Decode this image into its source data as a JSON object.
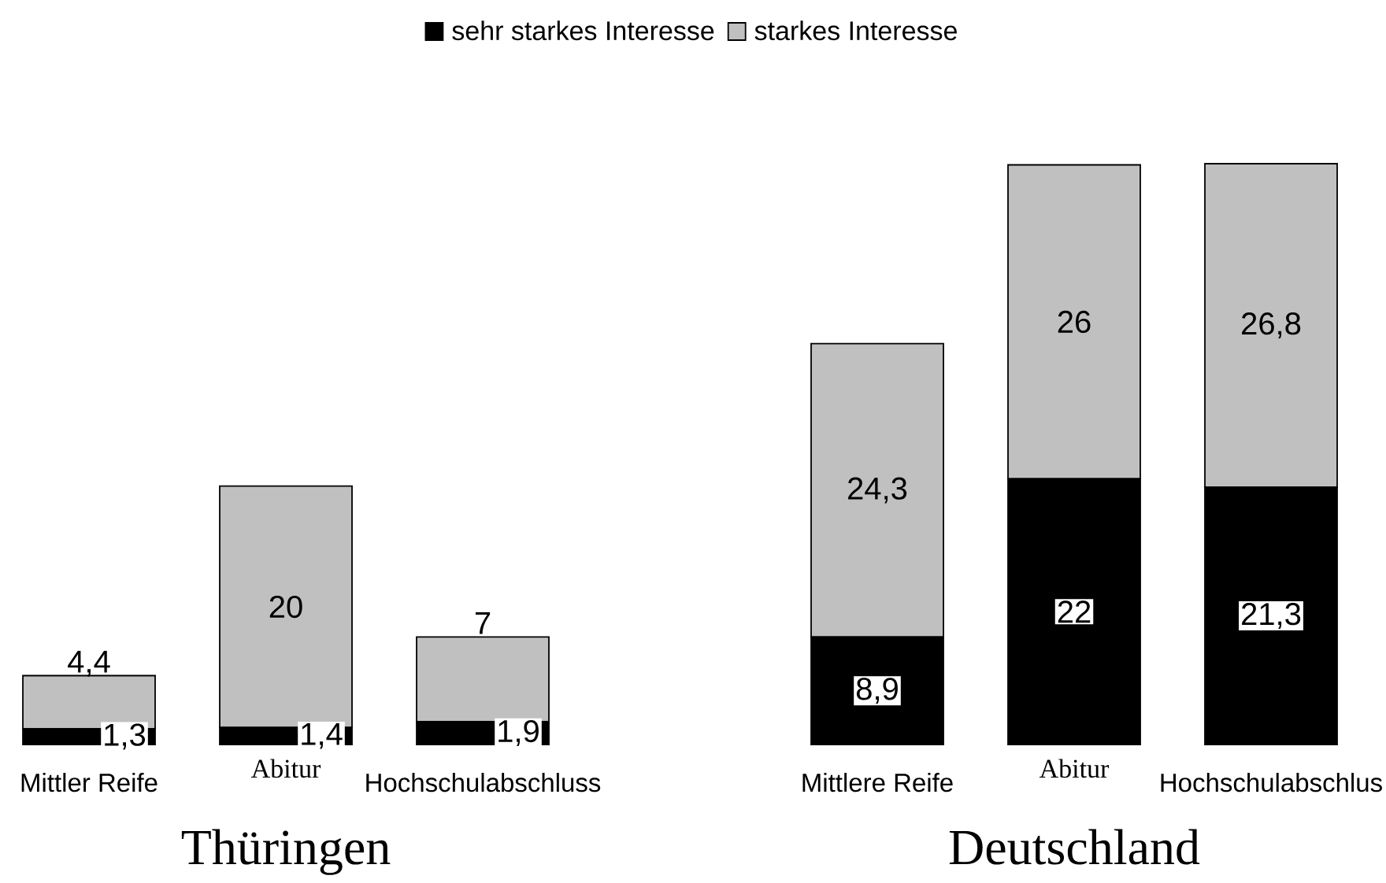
{
  "chart_data": [
    {
      "type": "bar",
      "stacked": true,
      "title": "Thüringen",
      "categories": [
        "Mittler Reife",
        "Abitur",
        "Hochschulabschluss"
      ],
      "tick_labels": "x",
      "legend": "top",
      "series": [
        {
          "name": "sehr starkes Interesse",
          "color": "#000000",
          "values": [
            1.3,
            1.4,
            1.9
          ],
          "value_labels": [
            "1,3",
            "1,4",
            "1,9"
          ]
        },
        {
          "name": "starkes Interesse",
          "color": "#c0c0c0",
          "values": [
            4.4,
            20,
            7
          ],
          "value_labels": [
            "4,4",
            "20",
            "7"
          ]
        }
      ]
    },
    {
      "type": "bar",
      "stacked": true,
      "title": "Deutschland",
      "categories": [
        "Mittlere Reife",
        "Abitur",
        "Hochschulabschlus"
      ],
      "tick_labels": "x",
      "series": [
        {
          "color": "#000000",
          "values": [
            8.9,
            22,
            21.3
          ],
          "value_labels": [
            "8,9",
            "22",
            "21,3"
          ]
        },
        {
          "color": "#c0c0c0",
          "values": [
            24.3,
            26,
            26.8
          ],
          "value_labels": [
            "24,3",
            "26",
            "26,8"
          ]
        }
      ]
    }
  ]
}
